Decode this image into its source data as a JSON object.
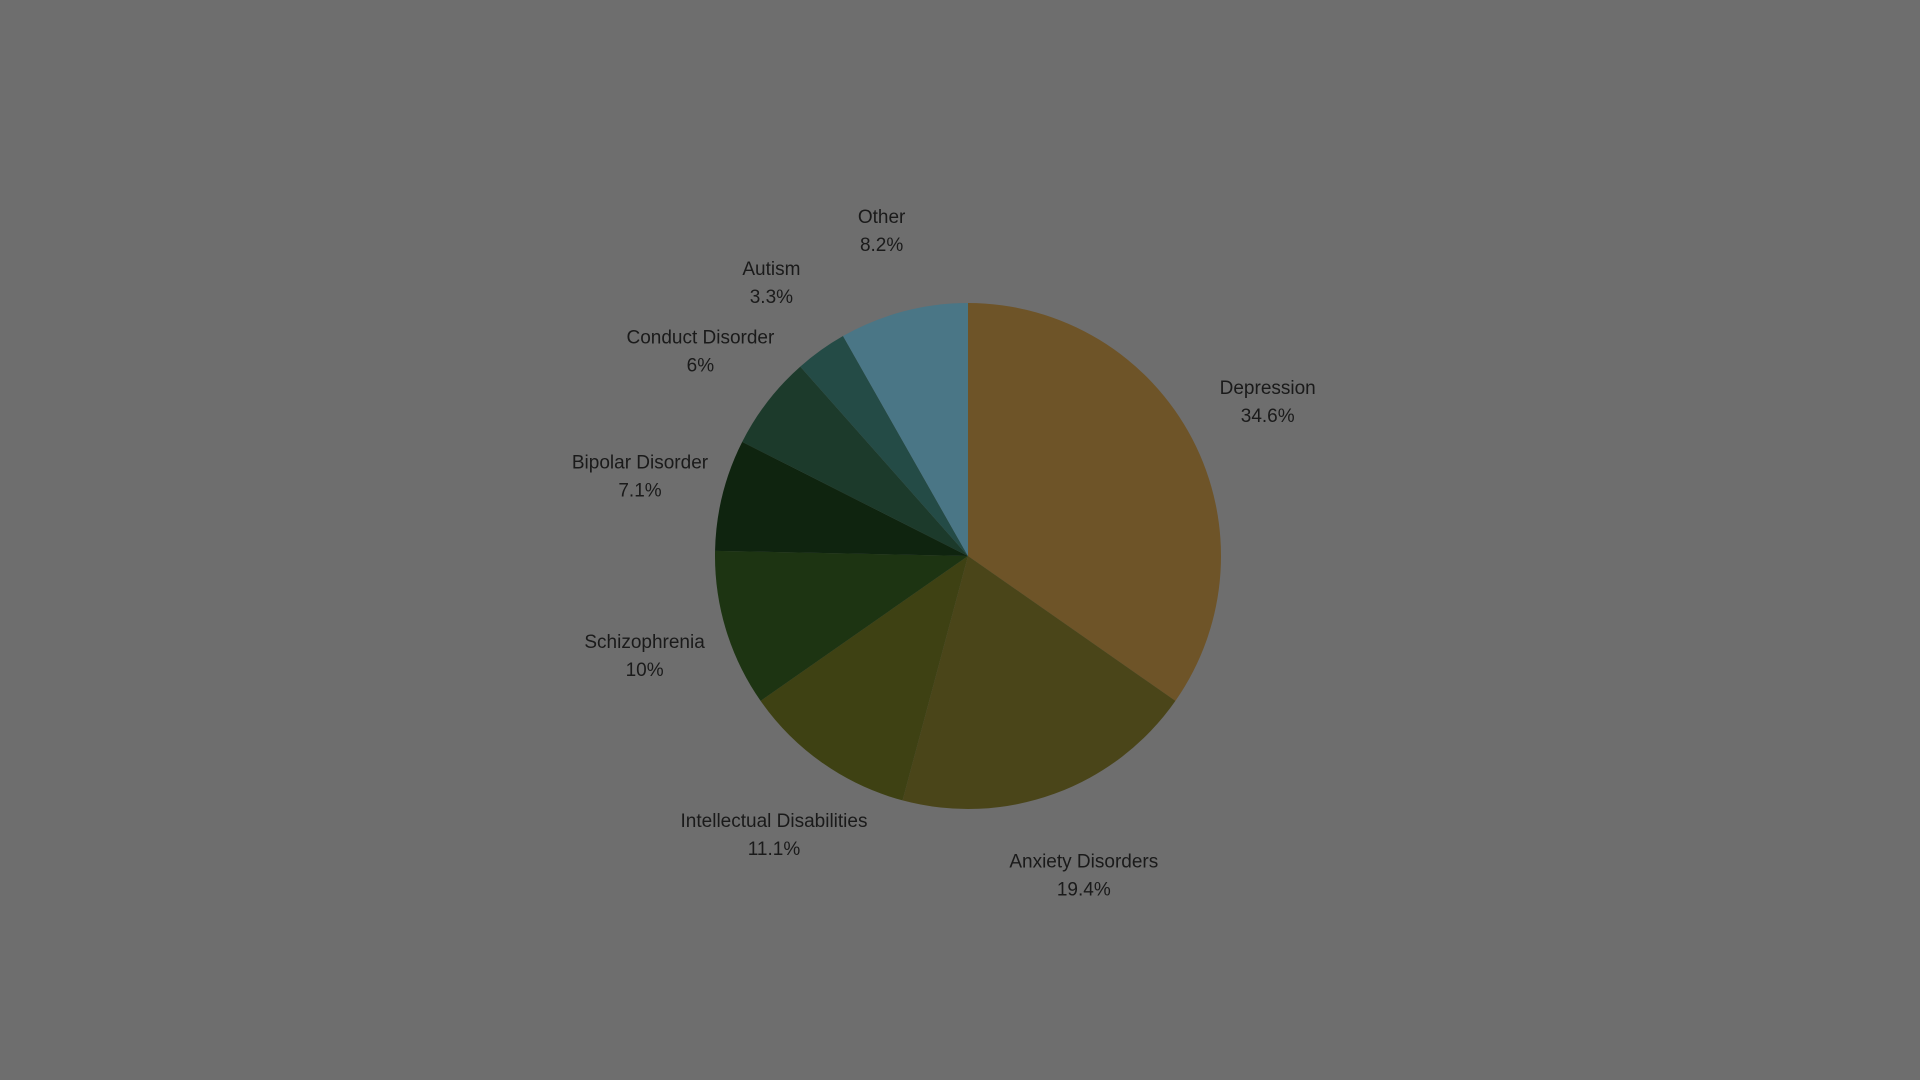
{
  "chart_data": {
    "type": "pie",
    "title": "",
    "start_angle_deg": 0,
    "direction": "clockwise",
    "slices": [
      {
        "label": "Depression",
        "value": 34.6,
        "value_label": "34.6%",
        "color": "#6e5428"
      },
      {
        "label": "Anxiety Disorders",
        "value": 19.4,
        "value_label": "19.4%",
        "color": "#4a4519"
      },
      {
        "label": "Intellectual Disabilities",
        "value": 11.1,
        "value_label": "11.1%",
        "color": "#3e4113"
      },
      {
        "label": "Schizophrenia",
        "value": 10,
        "value_label": "10%",
        "color": "#1d3412"
      },
      {
        "label": "Bipolar Disorder",
        "value": 7.1,
        "value_label": "7.1%",
        "color": "#0f240f"
      },
      {
        "label": "Conduct Disorder",
        "value": 6,
        "value_label": "6%",
        "color": "#1c3a2b"
      },
      {
        "label": "Autism",
        "value": 3.3,
        "value_label": "3.3%",
        "color": "#244b46"
      },
      {
        "label": "Other",
        "value": 8.2,
        "value_label": "8.2%",
        "color": "#4a7686"
      }
    ]
  }
}
